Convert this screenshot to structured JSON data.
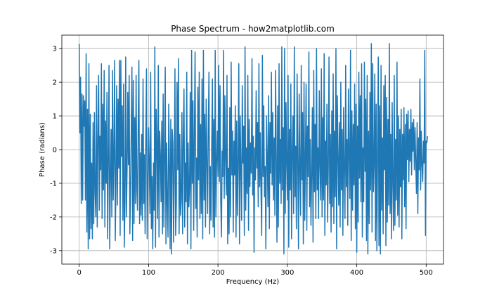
{
  "chart_data": {
    "type": "line",
    "title": "Phase Spectrum - how2matplotlib.com",
    "xlabel": "Frequency (Hz)",
    "ylabel": "Phase (radians)",
    "xlim": [
      -25,
      525
    ],
    "ylim": [
      -3.4,
      3.4
    ],
    "xticks": [
      0,
      100,
      200,
      300,
      400,
      500
    ],
    "yticks": [
      -3,
      -2,
      -1,
      0,
      1,
      2,
      3
    ],
    "xtick_labels": [
      "0",
      "100",
      "200",
      "300",
      "400",
      "500"
    ],
    "ytick_labels": [
      "-3",
      "-2",
      "-1",
      "0",
      "1",
      "2",
      "3"
    ],
    "grid": true,
    "series": [
      {
        "color": "#1f77b4",
        "x_start": 0,
        "x_step": 1,
        "values": [
          3.14,
          0.5,
          2.15,
          -1.6,
          1.65,
          -1.5,
          1.6,
          0.7,
          1.45,
          -1.5,
          2.85,
          -2.45,
          1.2,
          -2.95,
          2.55,
          -2.65,
          1.05,
          -2.35,
          -0.4,
          -2.65,
          0.8,
          -2.2,
          1.1,
          -1.3,
          -2.0,
          1.9,
          -2.3,
          0.3,
          2.2,
          -1.8,
          0.4,
          -0.6,
          2.55,
          -2.05,
          1.35,
          -1.2,
          2.35,
          -2.3,
          0.85,
          -1.0,
          1.7,
          -2.65,
          -0.3,
          2.5,
          -2.95,
          -0.8,
          0.6,
          -2.0,
          2.35,
          -1.5,
          -0.3,
          2.65,
          -2.7,
          -0.9,
          1.9,
          -1.65,
          1.5,
          -0.55,
          2.65,
          -2.55,
          2.65,
          -0.2,
          1.3,
          -2.1,
          1.95,
          -2.9,
          -1.55,
          2.75,
          -2.0,
          -0.6,
          1.7,
          -0.45,
          2.2,
          -2.5,
          -1.3,
          0.55,
          2.45,
          -2.7,
          2.05,
          -2.2,
          0.95,
          -1.6,
          2.2,
          -1.15,
          -1.8,
          0.6,
          2.65,
          -2.2,
          -0.1,
          -1.95,
          0.45,
          -2.1,
          2.1,
          -1.6,
          -0.15,
          -2.5,
          0.3,
          2.4,
          -2.65,
          -1.1,
          0.65,
          -0.45,
          -1.9,
          2.3,
          -2.35,
          -0.8,
          -2.95,
          -0.4,
          -1.8,
          3.05,
          -2.9,
          1.2,
          0.2,
          -2.05,
          2.5,
          -2.6,
          0.55,
          -0.15,
          -1.55,
          0.85,
          -2.5,
          1.65,
          -2.3,
          -0.3,
          2.45,
          -2.8,
          0.2,
          -1.6,
          -2.6,
          1.35,
          -0.4,
          -2.95,
          0.9,
          -3.1,
          0.6,
          0.2,
          -2.75,
          -0.7,
          2.4,
          -2.55,
          -1.6,
          2.0,
          -0.6,
          2.7,
          -2.5,
          0.45,
          -1.95,
          -1.5,
          1.1,
          -2.5,
          0.35,
          1.8,
          -2.3,
          -0.4,
          -1.55,
          2.3,
          -2.8,
          0.2,
          -1.7,
          -1.1,
          1.7,
          -2.95,
          2.95,
          -1.0,
          1.45,
          -2.4,
          0.5,
          2.9,
          -1.75,
          -0.25,
          -2.6,
          1.85,
          -0.9,
          2.3,
          -2.05,
          0.75,
          -1.9,
          2.1,
          -2.65,
          2.95,
          -1.5,
          1.05,
          -2.3,
          1.5,
          -0.3,
          -1.9,
          0.55,
          2.3,
          -2.5,
          -0.5,
          -2.1,
          0.2,
          2.1,
          -2.3,
          0.9,
          -2.6,
          2.95,
          -2.0,
          -0.4,
          0.55,
          -0.8,
          2.5,
          -0.95,
          1.9,
          -1.5,
          -2.6,
          -0.05,
          -0.8,
          2.95,
          -1.45,
          1.6,
          -0.3,
          -1.35,
          2.2,
          -2.8,
          -0.55,
          -2.5,
          1.25,
          -2.0,
          2.6,
          -0.75,
          0.55,
          -2.45,
          0.25,
          -0.75,
          1.3,
          -2.6,
          0.85,
          -1.95,
          -0.35,
          2.55,
          -2.8,
          1.0,
          -0.6,
          -2.1,
          1.9,
          -0.4,
          0.7,
          -2.55,
          3.05,
          -1.8,
          0.05,
          -1.3,
          2.2,
          -2.4,
          0.9,
          -1.1,
          0.2,
          -0.7,
          2.7,
          -1.35,
          0.4,
          -3.05,
          0.05,
          -0.9,
          1.75,
          -0.55,
          0.8,
          -1.7,
          2.55,
          -1.1,
          0.5,
          -1.25,
          -2.55,
          2.8,
          -0.8,
          1.3,
          -1.4,
          -0.5,
          -2.95,
          1.0,
          -0.2,
          -1.7,
          1.6,
          -2.35,
          0.8,
          -0.7,
          2.3,
          -1.05,
          1.1,
          -1.5,
          0.35,
          -1.95,
          2.35,
          -0.3,
          -2.75,
          1.3,
          -2.3,
          2.55,
          -1.0,
          0.3,
          -1.6,
          3.05,
          -1.2,
          0.65,
          -3.1,
          3.0,
          -1.9,
          1.4,
          -0.45,
          -1.5,
          2.2,
          -2.9,
          0.6,
          -1.2,
          1.95,
          -2.65,
          -0.05,
          1.0,
          -1.9,
          3.05,
          -1.4,
          0.1,
          -2.35,
          2.25,
          -0.35,
          -2.95,
          1.65,
          -0.6,
          -1.95,
          2.5,
          -0.9,
          1.1,
          -2.8,
          2.0,
          -2.1,
          -0.3,
          1.95,
          -2.4,
          0.7,
          -0.8,
          2.9,
          -1.7,
          0.3,
          -2.25,
          -0.7,
          1.25,
          -2.75,
          2.35,
          -1.25,
          0.75,
          -2.05,
          3.0,
          -1.2,
          0.05,
          -2.05,
          1.75,
          -0.5,
          -1.5,
          2.4,
          -2.0,
          0.95,
          -1.5,
          2.85,
          -2.55,
          0.25,
          -1.05,
          1.35,
          -2.15,
          -0.5,
          2.75,
          -1.6,
          0.45,
          -2.45,
          1.15,
          -1.7,
          2.25,
          -2.2,
          0.55,
          -1.4,
          3.0,
          -2.95,
          1.6,
          -0.15,
          -1.65,
          0.8,
          -2.3,
          2.0,
          -1.2,
          0.6,
          -2.55,
          1.25,
          -0.6,
          -2.05,
          2.5,
          -1.1,
          0.3,
          -2.25,
          1.8,
          -0.2,
          -1.45,
          2.95,
          -2.7,
          1.15,
          -1.8,
          0.75,
          -1.05,
          1.95,
          -2.35,
          1.35,
          -3.05,
          0.7,
          -2.15,
          2.3,
          -0.85,
          1.6,
          -1.55,
          2.55,
          -2.6,
          0.05,
          -1.55,
          2.6,
          -0.65,
          1.5,
          -2.7,
          2.2,
          -3.1,
          0.55,
          -2.2,
          1.7,
          -1.2,
          3.15,
          -2.45,
          2.55,
          -1.25,
          -0.45,
          2.25,
          -2.7,
          1.35,
          -3.0,
          -0.1,
          2.75,
          -2.85,
          1.3,
          -3.1,
          2.5,
          -1.8,
          0.35,
          -2.5,
          1.9,
          -0.6,
          2.2,
          -2.85,
          1.55,
          -2.15,
          0.9,
          -1.65,
          3.15,
          -1.9,
          0.45,
          -2.65,
          1.4,
          -1.05,
          -2.4,
          2.2,
          -2.25,
          0.3,
          -1.5,
          2.6,
          -1.95,
          1.0,
          -2.3,
          0.6,
          -1.1,
          1.2,
          -2.65,
          0.45,
          -0.9,
          1.25,
          -1.7,
          0.75,
          -2.35,
          1.05,
          -0.3,
          1.15,
          -0.95,
          0.6,
          -0.35,
          1.2,
          -0.75,
          0.8,
          -0.05,
          0.9,
          -0.6,
          0.65,
          -0.4,
          -1.3,
          0.8,
          -1.9,
          0.35,
          -0.6,
          2.1,
          -1.2,
          0.55,
          -0.45,
          -0.95,
          0.25,
          -0.4,
          2.95,
          -2.55,
          0.25,
          0.2,
          0.4
        ]
      }
    ]
  }
}
